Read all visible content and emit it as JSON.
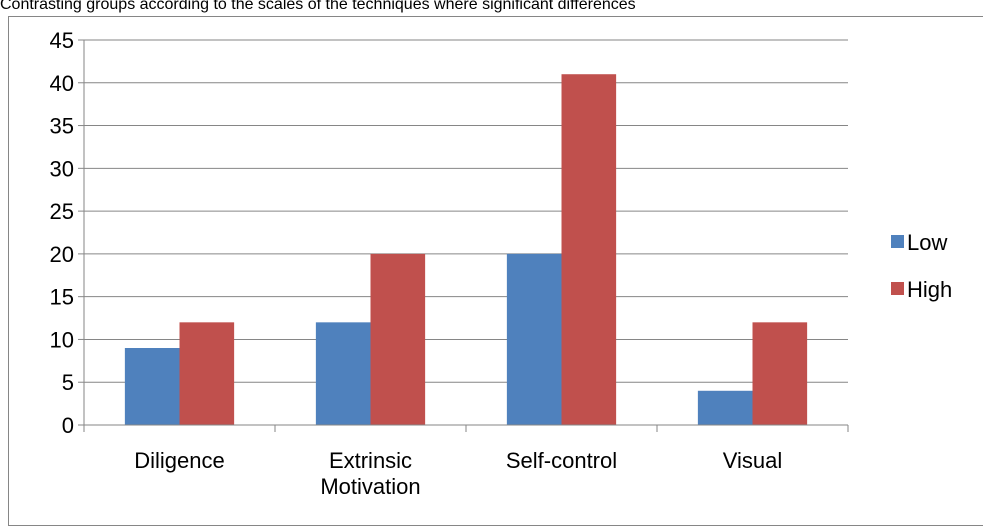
{
  "chart_data": {
    "type": "bar",
    "title": "Contrasting groups according to the scales of the techniques where significant differences",
    "xlabel": "",
    "ylabel": "",
    "categories": [
      "Diligence",
      "Extrinsic Motivation",
      "Self-control",
      "Visual"
    ],
    "category_lines": [
      [
        "Diligence"
      ],
      [
        "Extrinsic",
        "Motivation"
      ],
      [
        "Self-control"
      ],
      [
        "Visual"
      ]
    ],
    "series": [
      {
        "name": "Low",
        "values": [
          9,
          12,
          20,
          4
        ],
        "color": "#4F81BD"
      },
      {
        "name": "High",
        "values": [
          12,
          20,
          41,
          12
        ],
        "color": "#C0504D"
      }
    ],
    "ylim": [
      0,
      45
    ],
    "yticks": [
      0,
      5,
      10,
      15,
      20,
      25,
      30,
      35,
      40,
      45
    ],
    "grid": true,
    "legend": "right"
  }
}
